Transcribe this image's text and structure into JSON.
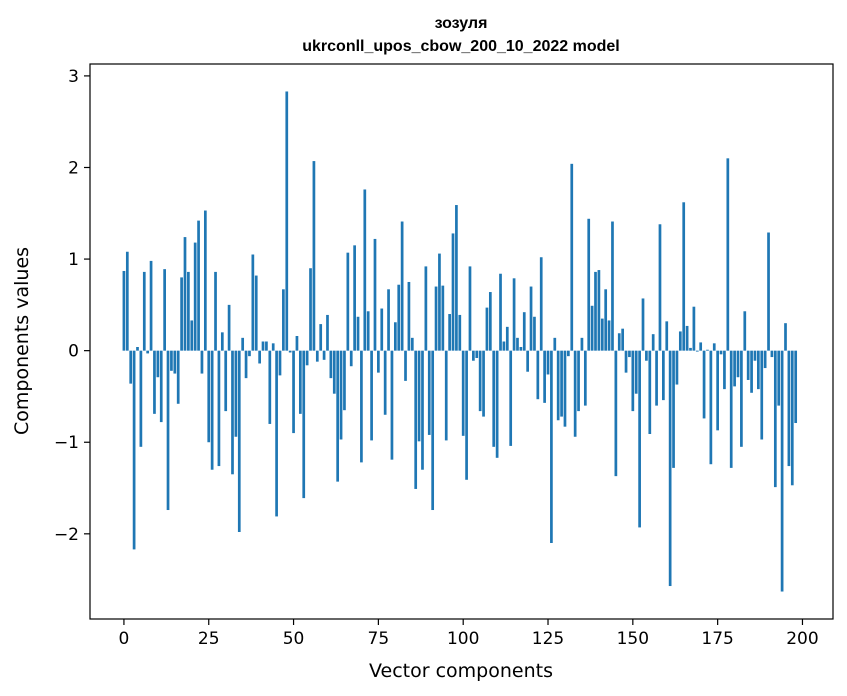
{
  "chart_data": {
    "type": "bar",
    "title": "зозуля",
    "subtitle": "ukrconll_upos_cbow_200_10_2022 model",
    "xlabel": "Vector components",
    "ylabel": "Components values",
    "xlim": [
      -10,
      209
    ],
    "ylim": [
      -2.93,
      3.13
    ],
    "xticks": [
      0,
      25,
      50,
      75,
      100,
      125,
      150,
      175,
      200
    ],
    "yticks": [
      -2,
      -1,
      0,
      1,
      2,
      3
    ],
    "xtick_labels": [
      "0",
      "25",
      "50",
      "75",
      "100",
      "125",
      "150",
      "175",
      "200"
    ],
    "ytick_labels": [
      "−2",
      "−1",
      "0",
      "1",
      "2",
      "3"
    ],
    "grid": false,
    "color": "#1f77b4",
    "values": [
      0.87,
      1.08,
      -0.36,
      -2.17,
      0.04,
      -1.05,
      0.86,
      -0.03,
      0.98,
      -0.69,
      -0.29,
      -0.78,
      0.89,
      -1.74,
      -0.22,
      -0.25,
      -0.58,
      0.8,
      1.24,
      0.86,
      0.33,
      1.18,
      1.42,
      -0.25,
      1.53,
      -1.0,
      -1.3,
      0.86,
      -1.26,
      0.2,
      -0.66,
      0.5,
      -1.35,
      -0.94,
      -1.98,
      0.14,
      -0.3,
      -0.06,
      1.05,
      0.82,
      -0.14,
      0.1,
      0.1,
      -0.8,
      0.08,
      -1.81,
      -0.27,
      0.67,
      2.83,
      -0.02,
      -0.9,
      0.16,
      -0.69,
      -1.61,
      -0.16,
      0.9,
      2.07,
      -0.12,
      0.29,
      -0.1,
      0.39,
      -0.3,
      -0.47,
      -1.43,
      -0.97,
      -0.65,
      1.07,
      -0.17,
      1.15,
      0.37,
      -1.22,
      1.76,
      0.43,
      -0.98,
      1.22,
      -0.24,
      0.46,
      -0.7,
      0.67,
      -1.19,
      0.31,
      0.72,
      1.41,
      -0.33,
      0.75,
      0.14,
      -1.51,
      -0.99,
      -1.3,
      0.92,
      -0.92,
      -1.74,
      0.7,
      1.06,
      0.71,
      -0.98,
      0.4,
      1.28,
      1.59,
      0.39,
      -0.93,
      -1.41,
      0.92,
      -0.11,
      -0.08,
      -0.66,
      -0.72,
      0.47,
      0.64,
      -1.05,
      -1.17,
      0.84,
      0.1,
      0.26,
      -1.04,
      0.79,
      0.14,
      0.04,
      0.42,
      -0.23,
      0.7,
      0.37,
      -0.53,
      1.02,
      -0.57,
      -0.26,
      -2.1,
      0.14,
      -0.76,
      -0.72,
      -0.83,
      -0.06,
      2.04,
      -0.94,
      -0.66,
      0.14,
      -0.6,
      1.44,
      0.49,
      0.86,
      0.88,
      0.35,
      0.67,
      0.33,
      1.41,
      -1.37,
      0.19,
      0.24,
      -0.24,
      -0.07,
      -0.66,
      -0.47,
      -1.93,
      0.57,
      -0.11,
      -0.91,
      0.18,
      -0.6,
      1.38,
      -0.54,
      0.32,
      -2.57,
      -1.28,
      -0.37,
      0.21,
      1.62,
      0.27,
      0.03,
      0.48,
      -0.01,
      0.09,
      -0.74,
      0.01,
      -1.24,
      0.08,
      -0.87,
      -0.04,
      -0.42,
      2.1,
      -1.28,
      -0.39,
      -0.29,
      -1.05,
      0.43,
      -0.32,
      -0.46,
      -0.11,
      -0.42,
      -0.97,
      -0.19,
      1.29,
      -0.07,
      -1.49,
      -0.6,
      -2.63,
      0.3,
      -1.26,
      -1.47,
      -0.79
    ]
  }
}
